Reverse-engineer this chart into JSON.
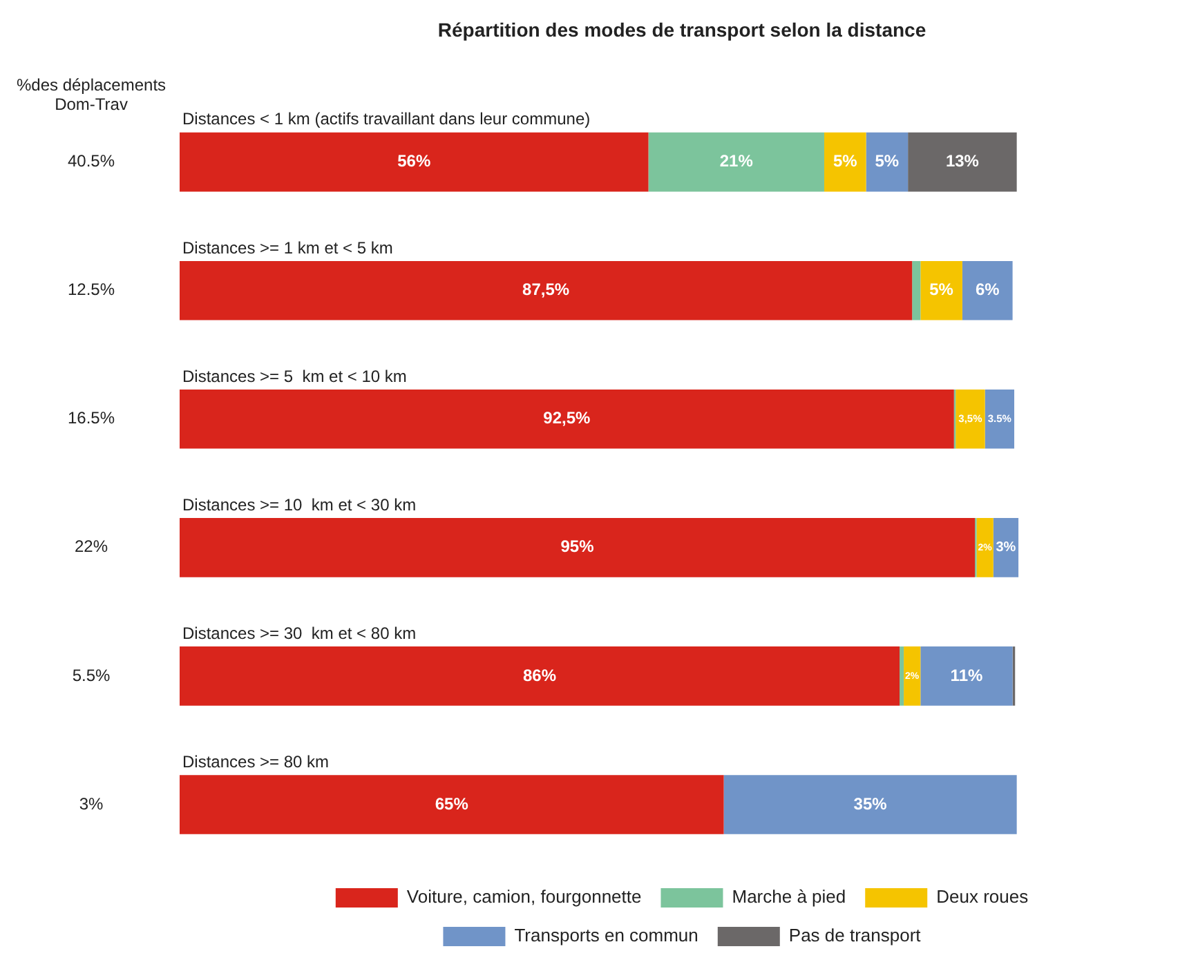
{
  "chart_data": {
    "type": "bar",
    "orientation": "horizontal",
    "stacked": true,
    "title": "Répartition des modes de transport selon la distance",
    "categories": [
      "Distances < 1 km (actifs travaillant dans leur commune)",
      "Distances >= 1 km et < 5 km",
      "Distances >= 5  km et < 10 km",
      "Distances >= 10  km et < 30 km",
      "Distances >= 30  km et < 80 km",
      "Distances >= 80 km"
    ],
    "series": [
      {
        "name": "Voiture, camion, fourgonnette",
        "color": "#d9251c",
        "values": [
          56,
          87.5,
          92.5,
          95,
          86,
          65
        ],
        "value_labels": [
          "56%",
          "87,5%",
          "92,5%",
          "95%",
          "86%",
          "65%"
        ]
      },
      {
        "name": "Marche à pied",
        "color": "#7cc49c",
        "values": [
          21,
          1,
          0.2,
          0.2,
          0.5,
          null
        ],
        "value_labels": [
          "21%",
          null,
          null,
          null,
          null,
          null
        ]
      },
      {
        "name": "Deux roues",
        "color": "#f5c400",
        "values": [
          5,
          5,
          3.5,
          2,
          2,
          null
        ],
        "value_labels": [
          "5%",
          "5%",
          "3,5%",
          "2%",
          "2%",
          null
        ]
      },
      {
        "name": "Transports en commun",
        "color": "#7094c8",
        "values": [
          5,
          6,
          3.5,
          3,
          11,
          35
        ],
        "value_labels": [
          "5%",
          "6%",
          "3.5%",
          "3%",
          "11%",
          "35%"
        ]
      },
      {
        "name": "Pas de transport",
        "color": "#6b6868",
        "values": [
          13,
          null,
          null,
          null,
          0.3,
          null
        ],
        "value_labels": [
          "13%",
          null,
          null,
          null,
          null,
          null
        ]
      }
    ],
    "annotations": [
      "%des déplacements Dom-Trav",
      "40.5%",
      "12.5%",
      "16.5%",
      "22%",
      "5.5%",
      "3%"
    ],
    "legend": "bottom"
  }
}
